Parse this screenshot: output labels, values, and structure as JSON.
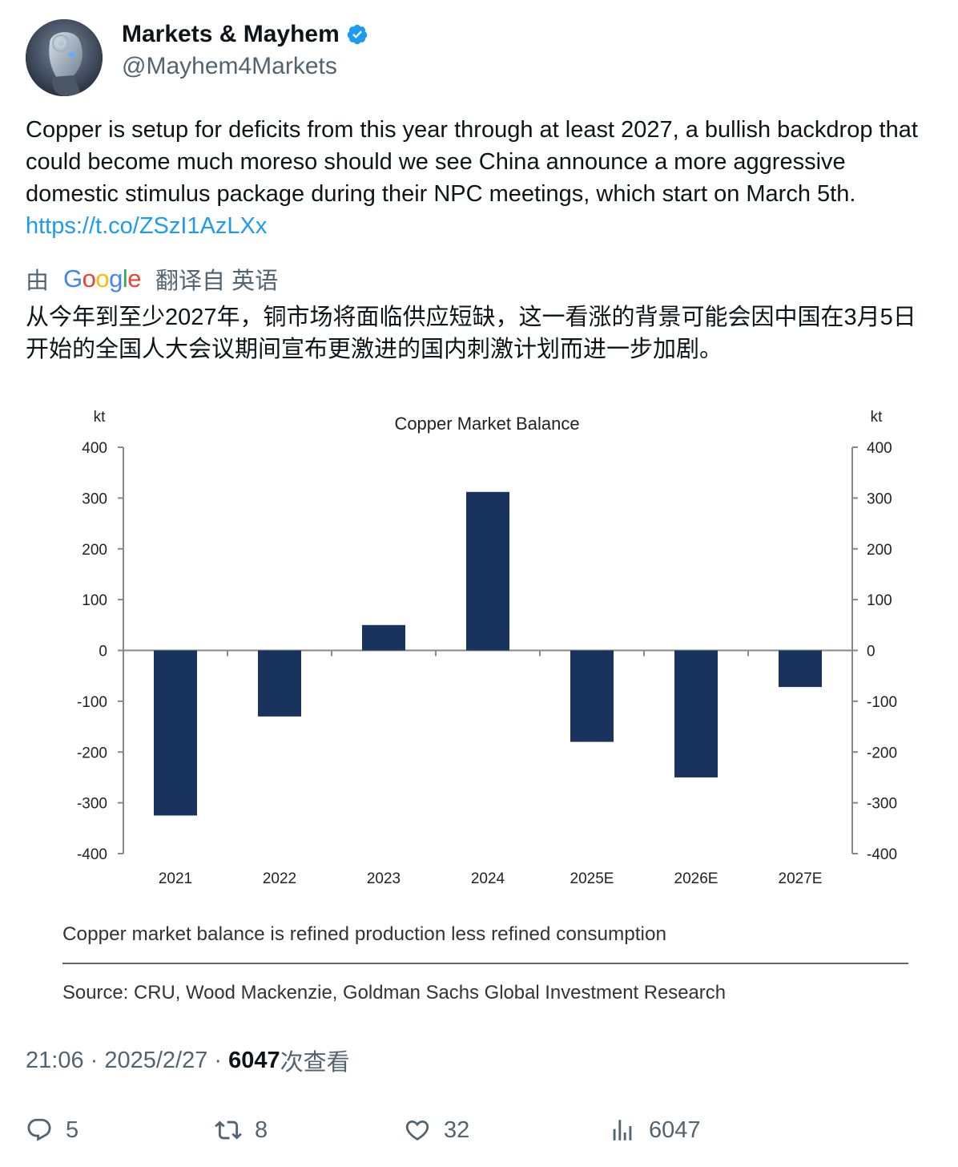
{
  "author": {
    "display_name": "Markets & Mayhem",
    "handle": "@Mayhem4Markets",
    "verified_icon": "verified-badge-icon",
    "verified_color": "#1d9bf0"
  },
  "tweet": {
    "text": "Copper is setup for deficits from this year through at least 2027, a bullish backdrop that could become much moreso should we see China announce a more aggressive domestic stimulus package during their NPC meetings, which start on March 5th. ",
    "link": "https://t.co/ZSzI1AzLXx",
    "link_color": "#1d9bf0"
  },
  "translation": {
    "by_label": "由",
    "provider_label": "Google",
    "from_label": "翻译自 英语",
    "text": "从今年到至少2027年，铜市场将面临供应短缺，这一看涨的背景可能会因中国在3月5日开始的全国人大会议期间宣布更激进的国内刺激计划而进一步加剧。"
  },
  "chart_data": {
    "type": "bar",
    "title": "Copper Market Balance",
    "ylabel_left": "kt",
    "ylabel_right": "kt",
    "categories": [
      "2021",
      "2022",
      "2023",
      "2024",
      "2025E",
      "2026E",
      "2027E"
    ],
    "values": [
      -325,
      -130,
      50,
      312,
      -180,
      -250,
      -72
    ],
    "ylim": [
      -400,
      400
    ],
    "yticks": [
      "400",
      "300",
      "200",
      "100",
      "0",
      "-100",
      "-200",
      "-300",
      "-400"
    ],
    "bar_color": "#17335e",
    "grid": false,
    "note": "Copper market balance is refined production less refined consumption",
    "source": "Source: CRU, Wood Mackenzie, Goldman Sachs Global Investment Research"
  },
  "meta": {
    "time": "21:06",
    "separator": " · ",
    "date": "2025/2/27",
    "views_count": "6047",
    "views_label": "次查看"
  },
  "actions": {
    "reply_count": "5",
    "retweet_count": "8",
    "like_count": "32",
    "views_count": "6047"
  }
}
